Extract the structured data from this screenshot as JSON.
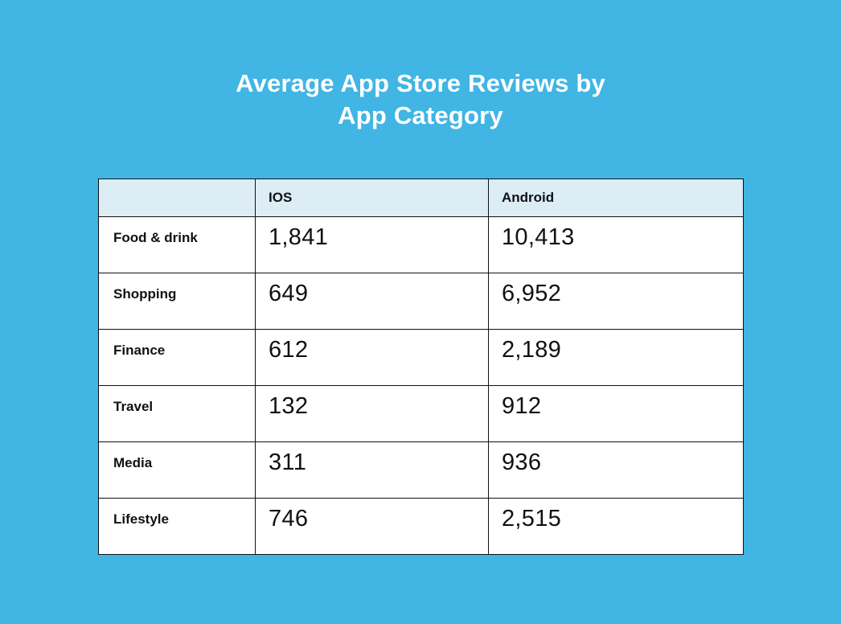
{
  "title": {
    "line1": "Average App Store Reviews by",
    "line2": "App Category"
  },
  "table": {
    "columns": [
      "",
      "IOS",
      "Android"
    ],
    "rows": [
      {
        "category": "Food & drink",
        "ios": "1,841",
        "android": "10,413"
      },
      {
        "category": "Shopping",
        "ios": "649",
        "android": "6,952"
      },
      {
        "category": "Finance",
        "ios": "612",
        "android": "2,189"
      },
      {
        "category": "Travel",
        "ios": "132",
        "android": "912"
      },
      {
        "category": "Media",
        "ios": "311",
        "android": "936"
      },
      {
        "category": "Lifestyle",
        "ios": "746",
        "android": "2,515"
      }
    ]
  },
  "chart_data": {
    "type": "table",
    "title": "Average App Store Reviews by App Category",
    "columns": [
      "IOS",
      "Android"
    ],
    "categories": [
      "Food & drink",
      "Shopping",
      "Finance",
      "Travel",
      "Media",
      "Lifestyle"
    ],
    "series": [
      {
        "name": "IOS",
        "values": [
          1841,
          649,
          612,
          132,
          311,
          746
        ]
      },
      {
        "name": "Android",
        "values": [
          10413,
          6952,
          2189,
          912,
          936,
          2515
        ]
      }
    ]
  },
  "colors": {
    "background": "#41B5E3",
    "header_background": "#DCEDF6",
    "border": "#111111",
    "title_text": "#FFFFFF",
    "cell_text": "#111111"
  }
}
